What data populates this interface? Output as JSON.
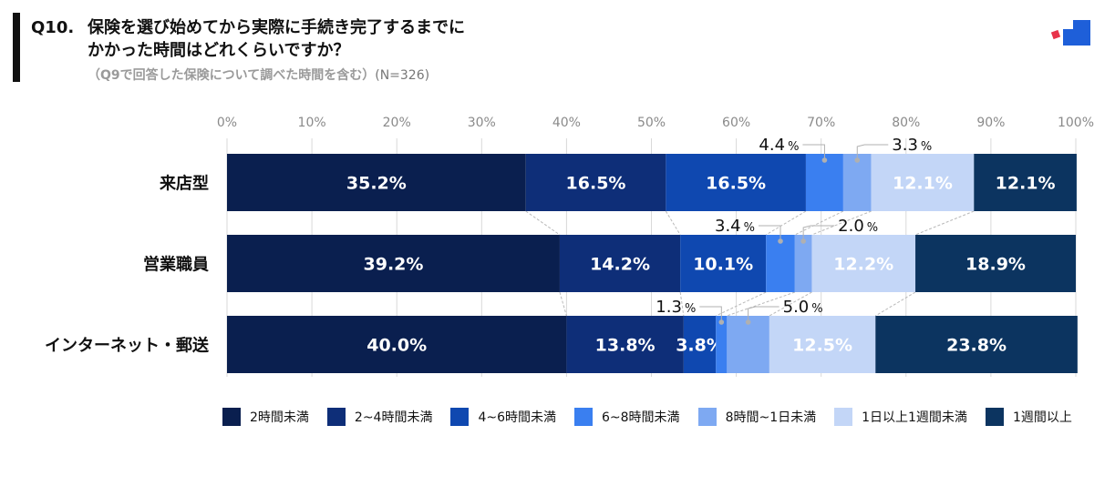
{
  "header": {
    "question_no": "Q10.",
    "title_line1": "保険を選び始めてから実際に手続き完了するまでに",
    "title_line2": "かかった時間はどれくらいですか？",
    "subtitle": "（Q9で回答した保険について調べた時間を含む）",
    "sample": "(N=326)"
  },
  "logo": {
    "icon": "brand-logo-icon",
    "colors": [
      "#e8334a",
      "#1e5fd9"
    ]
  },
  "chart_data": {
    "type": "bar",
    "orientation": "horizontal-stacked-100",
    "xlim": [
      0,
      100
    ],
    "ticks": [
      "0%",
      "10%",
      "20%",
      "30%",
      "40%",
      "50%",
      "60%",
      "70%",
      "80%",
      "90%",
      "100%"
    ],
    "categories": [
      "来店型",
      "営業職員",
      "インターネット・郵送"
    ],
    "series": [
      {
        "name": "2時間未満",
        "color": "#0a1f4f",
        "label_color": "#ffffff",
        "values": [
          35.2,
          39.2,
          40.0
        ],
        "labels": [
          "35.2%",
          "39.2%",
          "40.0%"
        ]
      },
      {
        "name": "2~4時間未満",
        "color": "#0e2e78",
        "label_color": "#ffffff",
        "values": [
          16.5,
          14.2,
          13.8
        ],
        "labels": [
          "16.5%",
          "14.2%",
          "13.8%"
        ]
      },
      {
        "name": "4~6時間未満",
        "color": "#0f48b0",
        "label_color": "#ffffff",
        "values": [
          16.5,
          10.1,
          3.8
        ],
        "labels": [
          "16.5%",
          "10.1%",
          "3.8%"
        ]
      },
      {
        "name": "6~8時間未満",
        "color": "#3a7ff0",
        "label_color": "#ffffff",
        "values": [
          4.4,
          3.4,
          1.3
        ],
        "labels": [
          "4.4",
          "3.4",
          "1.3"
        ],
        "outside": [
          true,
          true,
          true
        ]
      },
      {
        "name": "8時間~1日未満",
        "color": "#7ea9f2",
        "label_color": "#ffffff",
        "values": [
          3.3,
          2.0,
          5.0
        ],
        "labels": [
          "3.3",
          "2.0",
          "5.0"
        ],
        "outside": [
          true,
          true,
          true
        ]
      },
      {
        "name": "1日以上1週間未満",
        "color": "#c3d6f7",
        "label_color": "#ffffff",
        "values": [
          12.1,
          12.2,
          12.5
        ],
        "labels": [
          "12.1%",
          "12.2%",
          "12.5%"
        ]
      },
      {
        "name": "1週間以上",
        "color": "#0c3460",
        "label_color": "#ffffff",
        "values": [
          12.1,
          18.9,
          23.8
        ],
        "labels": [
          "12.1%",
          "18.9%",
          "23.8%"
        ]
      }
    ],
    "percent_suffix": "%",
    "legend_position": "bottom"
  }
}
